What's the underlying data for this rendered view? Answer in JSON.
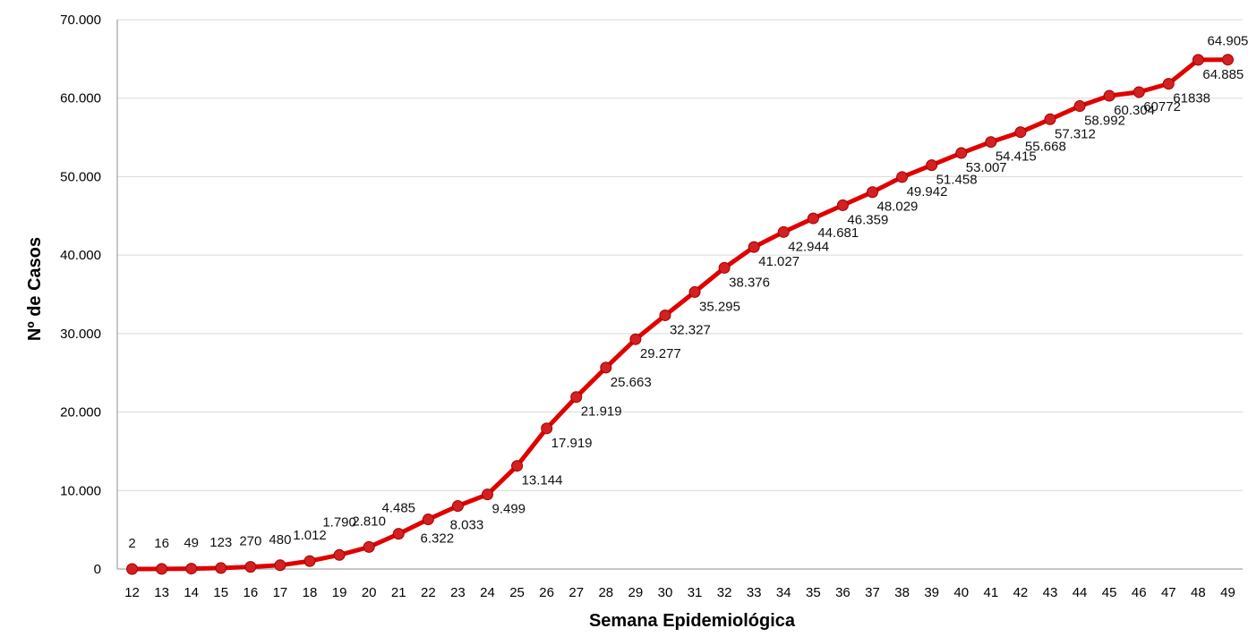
{
  "chart_data": {
    "type": "line",
    "title": "",
    "xlabel": "Semana Epidemiológica",
    "ylabel": "Nº de Casos",
    "ylim": [
      0,
      70000
    ],
    "yticks": [
      {
        "value": 0,
        "label": "0"
      },
      {
        "value": 10000,
        "label": "10.000"
      },
      {
        "value": 20000,
        "label": "20.000"
      },
      {
        "value": 30000,
        "label": "30.000"
      },
      {
        "value": 40000,
        "label": "40.000"
      },
      {
        "value": 50000,
        "label": "50.000"
      },
      {
        "value": 60000,
        "label": "60.000"
      },
      {
        "value": 70000,
        "label": "70.000"
      }
    ],
    "grid": "horizontal",
    "line_color": "#e00000",
    "marker_color": "#d42020",
    "categories": [
      "12",
      "13",
      "14",
      "15",
      "16",
      "17",
      "18",
      "19",
      "20",
      "21",
      "22",
      "23",
      "24",
      "25",
      "26",
      "27",
      "28",
      "29",
      "30",
      "31",
      "32",
      "33",
      "34",
      "35",
      "36",
      "37",
      "38",
      "39",
      "40",
      "41",
      "42",
      "43",
      "44",
      "45",
      "46",
      "47",
      "48",
      "49"
    ],
    "values": [
      2,
      16,
      49,
      123,
      270,
      480,
      1012,
      1790,
      2810,
      4485,
      6322,
      8033,
      9499,
      13144,
      17919,
      21919,
      25663,
      29277,
      32327,
      35295,
      38376,
      41027,
      42944,
      44681,
      46359,
      48029,
      49942,
      51458,
      53007,
      54415,
      55668,
      57312,
      58992,
      60304,
      60772,
      61838,
      64885,
      64905
    ],
    "labels": [
      "2",
      "16",
      "49",
      "123",
      "270",
      "480",
      "1.012",
      "1.790",
      "2.810",
      "4.485",
      "6.322",
      "8.033",
      "9.499",
      "13.144",
      "17.919",
      "21.919",
      "25.663",
      "29.277",
      "32.327",
      "35.295",
      "38.376",
      "41.027",
      "42.944",
      "44.681",
      "46.359",
      "48.029",
      "49.942",
      "51.458",
      "53.007",
      "54.415",
      "55.668",
      "57.312",
      "58.992",
      "60.304",
      "60772",
      "61838",
      "64.885",
      "64.905"
    ]
  }
}
